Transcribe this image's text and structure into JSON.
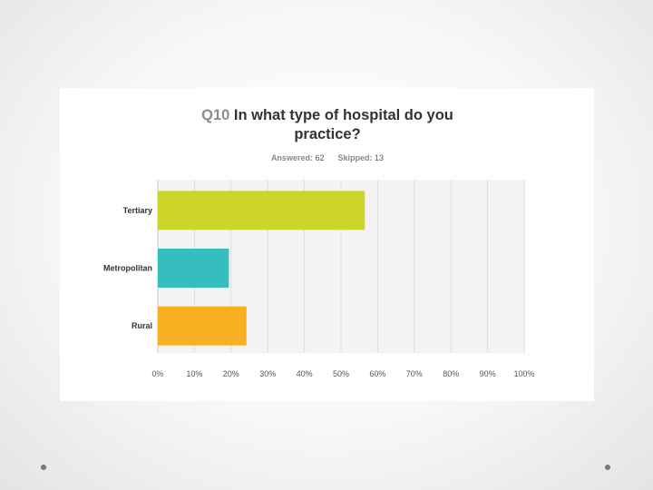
{
  "question": {
    "number": "Q10",
    "text_line1": "In what type of hospital do you",
    "text_line2": "practice?"
  },
  "stats": {
    "answered_label": "Answered:",
    "answered_value": "62",
    "skipped_label": "Skipped:",
    "skipped_value": "13"
  },
  "chart_data": {
    "type": "bar",
    "orientation": "horizontal",
    "categories": [
      "Tertiary",
      "Metropolitan",
      "Rural"
    ],
    "values": [
      56.5,
      19.4,
      24.2
    ],
    "xlim": [
      0,
      100
    ],
    "x_ticks": [
      "0%",
      "10%",
      "20%",
      "30%",
      "40%",
      "50%",
      "60%",
      "70%",
      "80%",
      "90%",
      "100%"
    ],
    "colors": [
      "#cdd52b",
      "#35bec0",
      "#f7b022"
    ],
    "grid": true
  },
  "background_color": "#f2f2f2",
  "plot_background": "#f4f4f4"
}
